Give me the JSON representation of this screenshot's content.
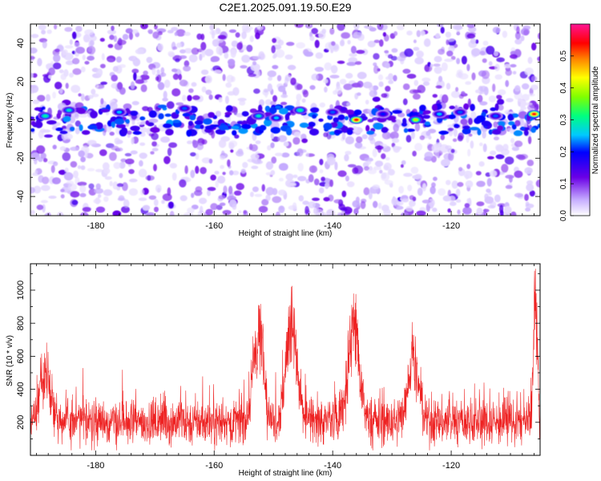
{
  "title": "C2E1.2025.091.19.50.E29",
  "colors": {
    "snr_line": "#ee2222",
    "frame": "#000000",
    "spectrogram_low": "#b89cff",
    "spectrogram_mid": "#6a00e6",
    "spectrogram_high": "#ff1493"
  },
  "chart_data": [
    {
      "type": "heatmap",
      "title": "C2E1.2025.091.19.50.E29",
      "xlabel": "Height of straight line (km)",
      "ylabel": "Frequency (Hz)",
      "xlim": [
        -191,
        -105
      ],
      "ylim": [
        -50,
        50
      ],
      "x_ticks": [
        -180,
        -160,
        -140,
        -120
      ],
      "y_ticks": [
        -40,
        -20,
        0,
        20,
        40
      ],
      "colorbar": {
        "label": "Normalized spectral amplitude",
        "range": [
          0,
          0.6
        ],
        "ticks": [
          "0.0",
          "0.1",
          "0.2",
          "0.3",
          "0.4",
          "0.5"
        ],
        "colormap": "rainbow (white-violet-blue-cyan-green-yellow-red-pink)"
      },
      "features": {
        "band_center_hz": 0,
        "hotspots": [
          {
            "x": -188.5,
            "y": 2,
            "value": 0.3
          },
          {
            "x": -184.5,
            "y": 5,
            "value": 0.28
          },
          {
            "x": -176,
            "y": 4,
            "value": 0.25
          },
          {
            "x": -165,
            "y": 6,
            "value": 0.22
          },
          {
            "x": -152.5,
            "y": 2,
            "value": 0.28
          },
          {
            "x": -149.5,
            "y": 1,
            "value": 0.25
          },
          {
            "x": -145.5,
            "y": 5,
            "value": 0.3
          },
          {
            "x": -140,
            "y": 4,
            "value": 0.22
          },
          {
            "x": -136,
            "y": 0,
            "value": 0.55
          },
          {
            "x": -131.5,
            "y": 3,
            "value": 0.2
          },
          {
            "x": -126,
            "y": 0,
            "value": 0.4
          },
          {
            "x": -122,
            "y": 3,
            "value": 0.25
          },
          {
            "x": -118.5,
            "y": 4,
            "value": 0.22
          },
          {
            "x": -112.5,
            "y": 2,
            "value": 0.22
          },
          {
            "x": -106,
            "y": 3,
            "value": 0.55
          }
        ]
      }
    },
    {
      "type": "line",
      "xlabel": "Height of straight line (km)",
      "ylabel": "SNR (10 * v/v)",
      "xlim": [
        -191,
        -105
      ],
      "ylim": [
        0,
        1160
      ],
      "x_ticks": [
        -180,
        -160,
        -140,
        -120
      ],
      "y_ticks": [
        200,
        400,
        600,
        800,
        1000
      ],
      "baseline": {
        "mean": 200,
        "range": [
          50,
          450
        ]
      },
      "peaks": [
        {
          "x": -188.5,
          "y": 590
        },
        {
          "x": -152.5,
          "y": 910
        },
        {
          "x": -147,
          "y": 1020
        },
        {
          "x": -136.5,
          "y": 980
        },
        {
          "x": -126.5,
          "y": 730
        },
        {
          "x": -105.8,
          "y": 1130
        }
      ]
    }
  ]
}
